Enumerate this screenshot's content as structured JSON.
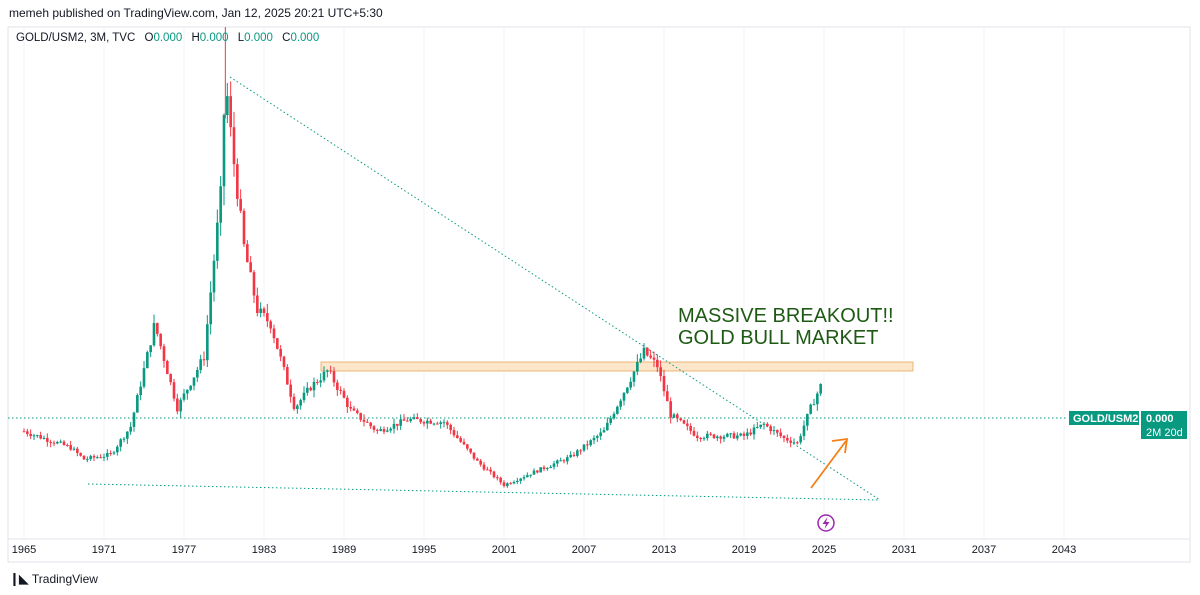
{
  "header": {
    "published": "memeh published on TradingView.com, Jan 12, 2025 20:21 UTC+5:30"
  },
  "legend": {
    "symbol": "GOLD/USM2, 3M, TVC",
    "ohlc": [
      {
        "key": "O",
        "value": "0.000"
      },
      {
        "key": "H",
        "value": "0.000"
      },
      {
        "key": "L",
        "value": "0.000"
      },
      {
        "key": "C",
        "value": "0.000"
      }
    ]
  },
  "annotation": {
    "line1": "MASSIVE BREAKOUT!!",
    "line2": "GOLD BULL MARKET"
  },
  "price_tag": {
    "symbol": "GOLD/USM2",
    "value": "0.000",
    "countdown": "2M 20d"
  },
  "footer": {
    "brand": "TradingView"
  },
  "colors": {
    "up": "#089981",
    "down": "#f23645",
    "trendline": "#089981",
    "zone_fill": "#fde6c9",
    "zone_stroke": "#e8a860",
    "arrow": "#f57f17",
    "annotation": "#1e5a14",
    "icon": "#9c27b0"
  },
  "icons": {
    "event_marker": "lightning-icon"
  },
  "chart_data": {
    "type": "candlestick",
    "series_name": "GOLD/USM2",
    "interval": "3M",
    "x_ticks": [
      "1965",
      "1971",
      "1977",
      "1983",
      "1989",
      "1995",
      "2001",
      "2007",
      "2013",
      "2019",
      "2025",
      "2031",
      "2037",
      "2043"
    ],
    "price_scale_visible": false,
    "grid": "vertical",
    "relative_price_points": [
      [
        1965.0,
        0.26
      ],
      [
        1968.5,
        0.19
      ],
      [
        1969.5,
        0.14
      ],
      [
        1971.5,
        0.16
      ],
      [
        1973.0,
        0.28
      ],
      [
        1974.8,
        0.72
      ],
      [
        1976.5,
        0.36
      ],
      [
        1978.5,
        0.58
      ],
      [
        1979.8,
        1.3
      ],
      [
        1980.1,
        1.78
      ],
      [
        1980.6,
        1.48
      ],
      [
        1981.5,
        1.05
      ],
      [
        1982.5,
        0.78
      ],
      [
        1983.5,
        0.72
      ],
      [
        1985.3,
        0.36
      ],
      [
        1986.5,
        0.45
      ],
      [
        1987.8,
        0.52
      ],
      [
        1989.5,
        0.35
      ],
      [
        1991.5,
        0.26
      ],
      [
        1993.8,
        0.31
      ],
      [
        1996.5,
        0.3
      ],
      [
        1999.0,
        0.13
      ],
      [
        2001.0,
        0.03
      ],
      [
        2003.0,
        0.08
      ],
      [
        2006.0,
        0.15
      ],
      [
        2008.5,
        0.26
      ],
      [
        2011.5,
        0.6
      ],
      [
        2012.5,
        0.54
      ],
      [
        2013.5,
        0.33
      ],
      [
        2015.5,
        0.24
      ],
      [
        2019.0,
        0.24
      ],
      [
        2020.5,
        0.29
      ],
      [
        2022.0,
        0.23
      ],
      [
        2023.0,
        0.21
      ],
      [
        2024.0,
        0.36
      ],
      [
        2024.8,
        0.46
      ]
    ]
  }
}
